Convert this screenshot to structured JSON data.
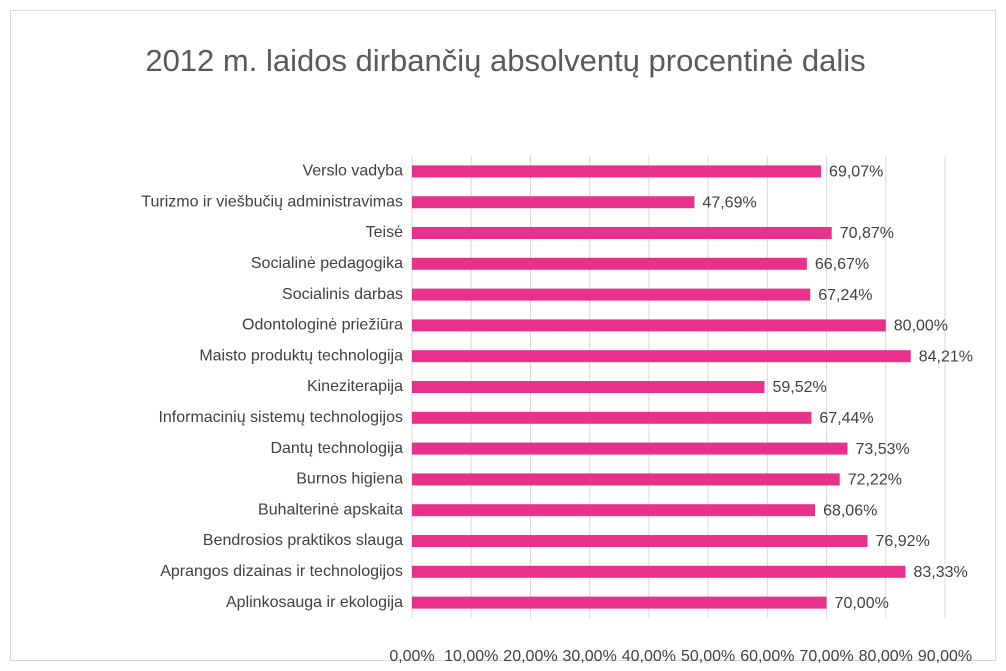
{
  "chart_data": {
    "type": "bar",
    "orientation": "horizontal",
    "title": "2012 m. laidos dirbančių absolventų procentinė dalis",
    "categories": [
      "Verslo vadyba",
      "Turizmo ir viešbučių administravimas",
      "Teisė",
      "Socialinė pedagogika",
      "Socialinis darbas",
      "Odontologinė priežiūra",
      "Maisto produktų technologija",
      "Kineziterapija",
      "Informacinių sistemų technologijos",
      "Dantų technologija",
      "Burnos higiena",
      "Buhalterinė apskaita",
      "Bendrosios praktikos slauga",
      "Aprangos dizainas ir technologijos",
      "Aplinkosauga ir ekologija"
    ],
    "values": [
      69.07,
      47.69,
      70.87,
      66.67,
      67.24,
      80.0,
      84.21,
      59.52,
      67.44,
      73.53,
      72.22,
      68.06,
      76.92,
      83.33,
      70.0
    ],
    "value_labels": [
      "69,07%",
      "47,69%",
      "70,87%",
      "66,67%",
      "67,24%",
      "80,00%",
      "84,21%",
      "59,52%",
      "67,44%",
      "73,53%",
      "72,22%",
      "68,06%",
      "76,92%",
      "83,33%",
      "70,00%"
    ],
    "color": "#e8318a",
    "xlim": [
      0,
      90
    ],
    "xticks": [
      {
        "value": 0,
        "label": "0,00%"
      },
      {
        "value": 10,
        "label": "10,00%"
      },
      {
        "value": 20,
        "label": "20,00%"
      },
      {
        "value": 30,
        "label": "30,00%"
      },
      {
        "value": 40,
        "label": "40,00%"
      },
      {
        "value": 50,
        "label": "50,00%"
      },
      {
        "value": 60,
        "label": "60,00%"
      },
      {
        "value": 70,
        "label": "70,00%"
      },
      {
        "value": 80,
        "label": "80,00%"
      },
      {
        "value": 90,
        "label": "90,00%"
      }
    ],
    "grid": true
  }
}
